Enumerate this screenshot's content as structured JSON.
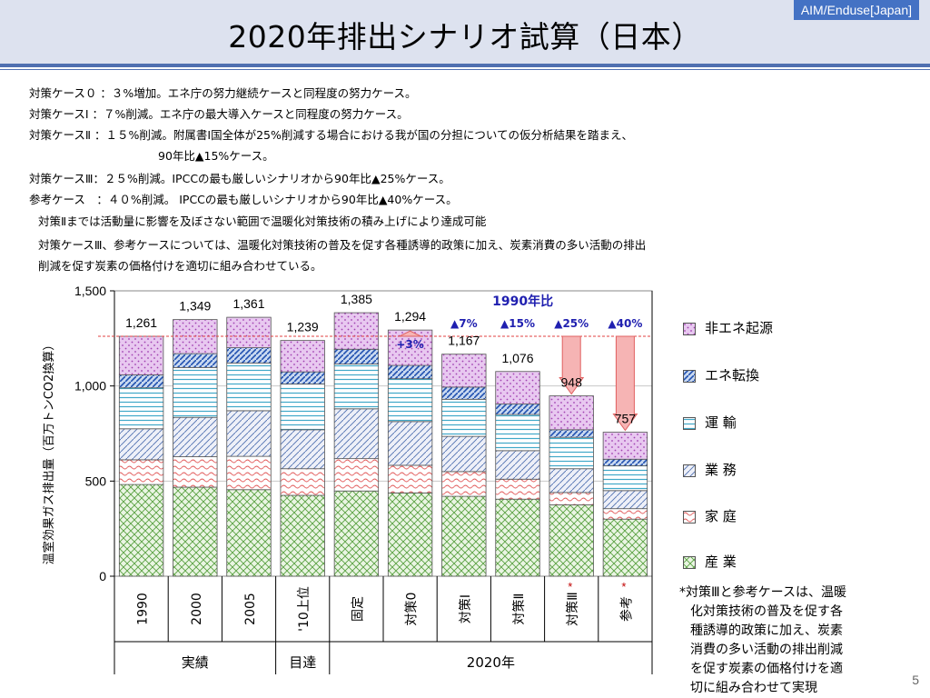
{
  "slide": {
    "title": "2020年排出シナリオ試算（日本）",
    "badge": "AIM/Enduse[Japan]",
    "page_number": "5",
    "description_lines": [
      "対策ケース０ ：３%増加。エネ庁の努力継続ケースと同程度の努力ケース。",
      "対策ケースⅠ ：７%削減。エネ庁の最大導入ケースと同程度の努力ケース。",
      "対策ケースⅡ ：１５%削減。附属書Ⅰ国全体が25%削減する場合における我が国の分担についての仮分析結果を踏まえ、",
      "90年比▲15%ケース。",
      "対策ケースⅢ：２５%削減。IPCCの最も厳しいシナリオから90年比▲25%ケース。",
      "参考ケース　：４０%削減。 IPCCの最も厳しいシナリオから90年比▲40%ケース。",
      "対策Ⅱまでは活動量に影響を及ぼさない範囲で温暖化対策技術の積み上げにより達成可能",
      "対策ケースⅢ、参考ケースについては、温暖化対策技術の普及を促す各種誘導的政策に加え、炭素消費の多い活動の排出",
      "削減を促す炭素の価格付けを適切に組み合わせている。"
    ],
    "side_note": [
      "*対策Ⅲと参考ケースは、温暖",
      "化対策技術の普及を促す各",
      "種誘導的政策に加え、炭素",
      "消費の多い活動の排出削減",
      "を促す炭素の価格付けを適",
      "切に組み合わせて実現"
    ]
  },
  "chart_data": {
    "type": "bar",
    "stacked": true,
    "ylabel": "温室効果ガス排出量（百万トンCO2換算）",
    "ylim": [
      0,
      1500
    ],
    "yticks": [
      0,
      500,
      1000,
      1500
    ],
    "ytick_labels": [
      "0",
      "500",
      "1,000",
      "1,500"
    ],
    "categories": [
      "1990",
      "2000",
      "2005",
      "'10上位",
      "固定",
      "対策0",
      "対策Ⅰ",
      "対策Ⅱ",
      "対策Ⅲ",
      "参考"
    ],
    "category_asterisk": [
      false,
      false,
      false,
      false,
      false,
      false,
      false,
      false,
      true,
      true
    ],
    "groups": [
      {
        "label": "実績",
        "start": 0,
        "end": 2
      },
      {
        "label": "目達",
        "start": 3,
        "end": 3
      },
      {
        "label": "2020年",
        "start": 4,
        "end": 9
      }
    ],
    "totals": [
      1261,
      1349,
      1361,
      1239,
      1385,
      1294,
      1167,
      1076,
      948,
      757
    ],
    "total_labels": [
      "1,261",
      "1,349",
      "1,361",
      "1,239",
      "1,385",
      "1,294",
      "1,167",
      "1,076",
      "948",
      "757"
    ],
    "series": [
      {
        "name": "産 業",
        "pattern": "crosshatch",
        "color": "#70b050",
        "values": [
          482,
          468,
          455,
          425,
          448,
          438,
          420,
          405,
          375,
          300
        ]
      },
      {
        "name": "家 庭",
        "pattern": "wave",
        "color": "#e06060",
        "values": [
          130,
          160,
          175,
          140,
          170,
          145,
          130,
          105,
          65,
          55
        ]
      },
      {
        "name": "業 務",
        "pattern": "diagonal",
        "color": "#5070b0",
        "values": [
          163,
          207,
          240,
          205,
          262,
          230,
          185,
          150,
          125,
          95
        ]
      },
      {
        "name": "運 輸",
        "pattern": "horizontal",
        "color": "#40a8c8",
        "values": [
          215,
          262,
          250,
          240,
          235,
          225,
          195,
          190,
          165,
          130
        ]
      },
      {
        "name": "エネ転換",
        "pattern": "bluediag",
        "color": "#3060c0",
        "values": [
          68,
          73,
          81,
          64,
          78,
          70,
          64,
          55,
          40,
          35
        ]
      },
      {
        "name": "非エネ起源",
        "pattern": "dots",
        "color": "#c060d0",
        "values": [
          203,
          179,
          160,
          165,
          192,
          186,
          173,
          171,
          178,
          142
        ]
      }
    ],
    "legend_order": [
      "非エネ起源",
      "エネ転換",
      "運 輸",
      "業 務",
      "家 庭",
      "産 業"
    ],
    "legend_position": "right",
    "reference_line": {
      "value": 1261,
      "style": "dashed",
      "color": "#e04040"
    },
    "annotation_header": "1990年比",
    "reduction_annotations": [
      {
        "category": "対策0",
        "label": "+3%",
        "direction": "up"
      },
      {
        "category": "対策Ⅰ",
        "label": "▲7%",
        "direction": "down"
      },
      {
        "category": "対策Ⅱ",
        "label": "▲15%",
        "direction": "down"
      },
      {
        "category": "対策Ⅲ",
        "label": "▲25%",
        "direction": "down"
      },
      {
        "category": "参考",
        "label": "▲40%",
        "direction": "down"
      }
    ]
  }
}
